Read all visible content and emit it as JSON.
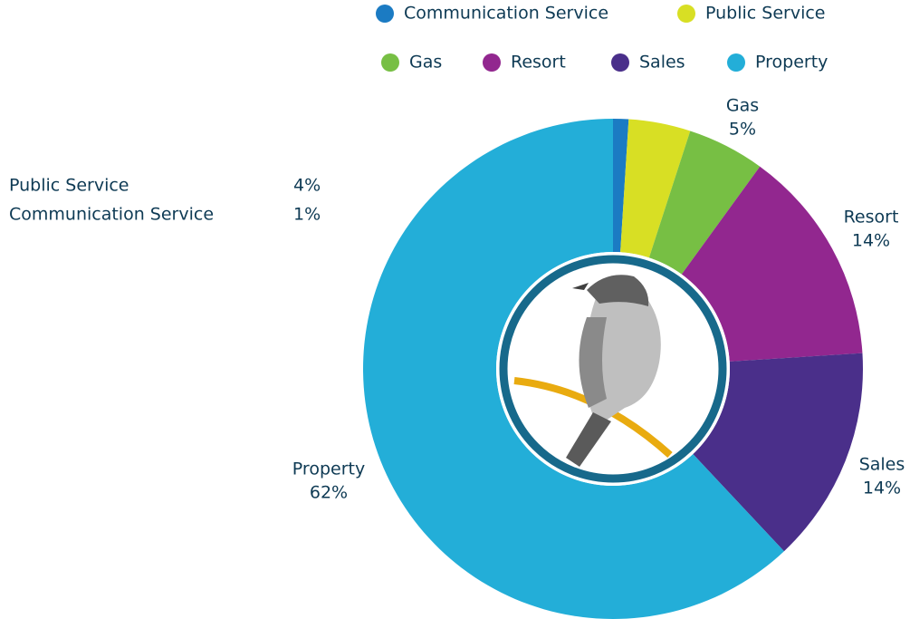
{
  "chart_data": {
    "type": "donut",
    "categories": [
      "Communication Service",
      "Public Service",
      "Gas",
      "Resort",
      "Sales",
      "Property"
    ],
    "values": [
      1,
      4,
      5,
      14,
      14,
      62
    ],
    "value_labels": [
      "1%",
      "4%",
      "5%",
      "14%",
      "14%",
      "62%"
    ],
    "colors": [
      "#1b7bc3",
      "#d8df24",
      "#77bf44",
      "#92278f",
      "#4a2f8a",
      "#23aed8"
    ]
  }
}
